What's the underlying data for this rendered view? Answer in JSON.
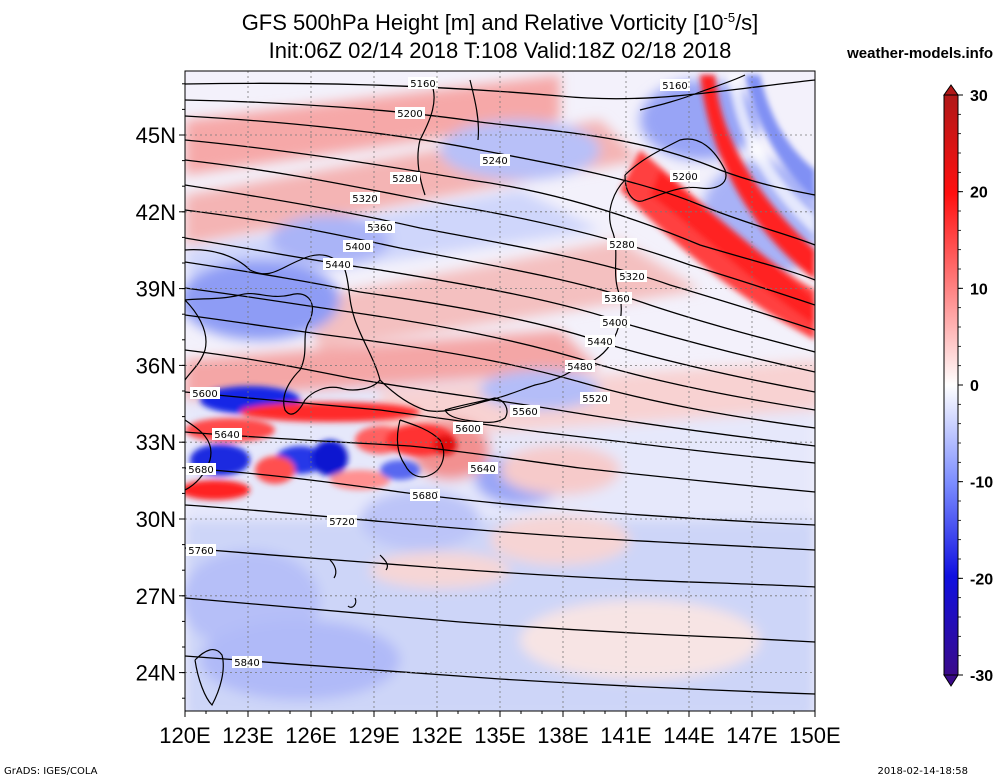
{
  "title": {
    "line1_pre": "GFS 500hPa Height [m] and Relative Vorticity [10",
    "line1_sup": "-5",
    "line1_post": "/s]",
    "line2": "Init:06Z 02/14 2018 T:108 Valid:18Z 02/18 2018"
  },
  "site": "weather-models.info",
  "footer": {
    "left": "GrADS: IGES/COLA",
    "right": "2018-02-14-18:58"
  },
  "axes": {
    "lat_ticks": [
      "45N",
      "42N",
      "39N",
      "36N",
      "33N",
      "30N",
      "27N",
      "24N"
    ],
    "lat_values": [
      45,
      42,
      39,
      36,
      33,
      30,
      27,
      24
    ],
    "lon_ticks": [
      "120E",
      "123E",
      "126E",
      "129E",
      "132E",
      "135E",
      "138E",
      "141E",
      "144E",
      "147E",
      "150E"
    ],
    "lon_values": [
      120,
      123,
      126,
      129,
      132,
      135,
      138,
      141,
      144,
      147,
      150
    ],
    "lat_range": [
      22.5,
      47.5
    ],
    "lon_range": [
      120,
      150
    ]
  },
  "colorbar": {
    "ticks": [
      "30",
      "20",
      "10",
      "0",
      "-10",
      "-20",
      "-30"
    ],
    "values": [
      30,
      20,
      10,
      0,
      -10,
      -20,
      -30
    ],
    "colors": {
      "max": "#b01818",
      "strong_pos": "#ff1010",
      "mid_pos": "#ff8080",
      "weak_pos": "#ffd0d0",
      "zero": "#ffffff",
      "weak_neg": "#d0d8ff",
      "mid_neg": "#7b8cff",
      "strong_neg": "#1010e0",
      "min": "#3a0a8a"
    }
  },
  "contours": {
    "labels": [
      "5160",
      "5200",
      "5240",
      "5280",
      "5320",
      "5360",
      "5400",
      "5440",
      "5480",
      "5520",
      "5560",
      "5600",
      "5640",
      "5680",
      "5720",
      "5760",
      "5840",
      "5160",
      "5200",
      "5280",
      "5320",
      "5360",
      "5400",
      "5440",
      "5600",
      "5640",
      "5680"
    ]
  }
}
